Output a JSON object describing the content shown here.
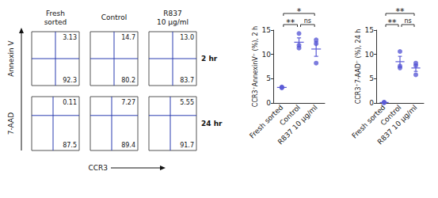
{
  "flow_cytometry": {
    "columns": [
      "Fresh sorted",
      "Control",
      "R837 10 µg/ml"
    ],
    "x_axis": "CCR3",
    "rows": [
      {
        "label": "2 hr",
        "y_axis": "Annexin V",
        "quadrants": [
          {
            "upper_right": 3.13,
            "lower_right": 92.3
          },
          {
            "upper_right": 14.7,
            "lower_right": 80.2
          },
          {
            "upper_right": {
              "value": 13.0,
              "label": "13.0"
            },
            "lower_right": 83.7
          }
        ]
      },
      {
        "label": "24 hr",
        "y_axis": "7-AAD",
        "quadrants": [
          {
            "upper_right": 0.11,
            "lower_right": 87.5
          },
          {
            "upper_right": 7.27,
            "lower_right": 89.4
          },
          {
            "upper_right": 5.55,
            "lower_right": 91.7
          }
        ]
      }
    ]
  },
  "chart_data": [
    {
      "type": "scatter",
      "y_label": "CCR3⁺AnnexinV⁺ (%), 2 h",
      "categories": [
        "Fresh sorted",
        "Control",
        "R837 10 µg/ml"
      ],
      "values": [
        [
          3.1,
          3.2,
          3.3
        ],
        [
          11.3,
          11.9,
          14.3
        ],
        [
          8.2,
          12.2,
          13.0
        ]
      ],
      "means": [
        3.2,
        12.5,
        11.1
      ],
      "errors": [
        0.06,
        0.9,
        1.5
      ],
      "color": "#5b5bd6",
      "marker": "circle",
      "ylim": [
        0,
        15
      ],
      "yticks": [
        0,
        5,
        10,
        15
      ],
      "grid": false,
      "comparisons": [
        {
          "groups": [
            "Fresh sorted",
            "R837 10 µg/ml"
          ],
          "label": "*"
        },
        {
          "groups": [
            "Fresh sorted",
            "Control"
          ],
          "label": "**"
        },
        {
          "groups": [
            "Control",
            "R837 10 µg/ml"
          ],
          "label": "ns"
        }
      ]
    },
    {
      "type": "scatter",
      "y_label": "CCR3⁺7-AAD⁺ (%), 24 h",
      "categories": [
        "Fresh sorted",
        "Control",
        "R837 10 µg/ml"
      ],
      "values": [
        [
          0.05,
          0.1,
          0.15
        ],
        [
          7.2,
          7.6,
          10.6
        ],
        [
          5.8,
          7.7,
          8.2
        ]
      ],
      "means": [
        0.1,
        8.5,
        7.2
      ],
      "errors": [
        0.03,
        1.1,
        0.7
      ],
      "color": "#5b5bd6",
      "marker": "circle",
      "ylim": [
        0,
        15
      ],
      "yticks": [
        0,
        5,
        10,
        15
      ],
      "grid": false,
      "comparisons": [
        {
          "groups": [
            "Fresh sorted",
            "R837 10 µg/ml"
          ],
          "label": "**"
        },
        {
          "groups": [
            "Fresh sorted",
            "Control"
          ],
          "label": "**"
        },
        {
          "groups": [
            "Control",
            "R837 10 µg/ml"
          ],
          "label": "ns"
        }
      ]
    }
  ]
}
